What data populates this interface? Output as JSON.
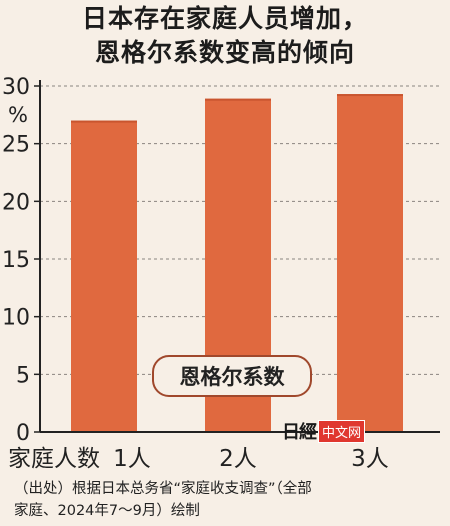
{
  "chart_data": {
    "type": "bar",
    "title_lines": [
      "日本存在家庭人员增加，",
      "恩格尔系数变高的倾向"
    ],
    "ylabel": "%",
    "ylim": [
      0,
      30
    ],
    "yticks": [
      0,
      5,
      10,
      15,
      20,
      25,
      30
    ],
    "categories": [
      "1人",
      "2人",
      "3人"
    ],
    "xlabel_prefix": "家庭人数",
    "values": [
      27.0,
      28.9,
      29.3
    ],
    "series_label": "恩格尔系数",
    "bar_color": "#e0693f",
    "bar_color_dark": "#c9552f",
    "grid": "dashed"
  },
  "source": {
    "line1": "（出处）根据日本总务省“家庭收支调查”（全部",
    "line2": "家庭、2024年7〜9月）绘制"
  },
  "logo": {
    "mark": "日經",
    "cn": "中文网"
  }
}
